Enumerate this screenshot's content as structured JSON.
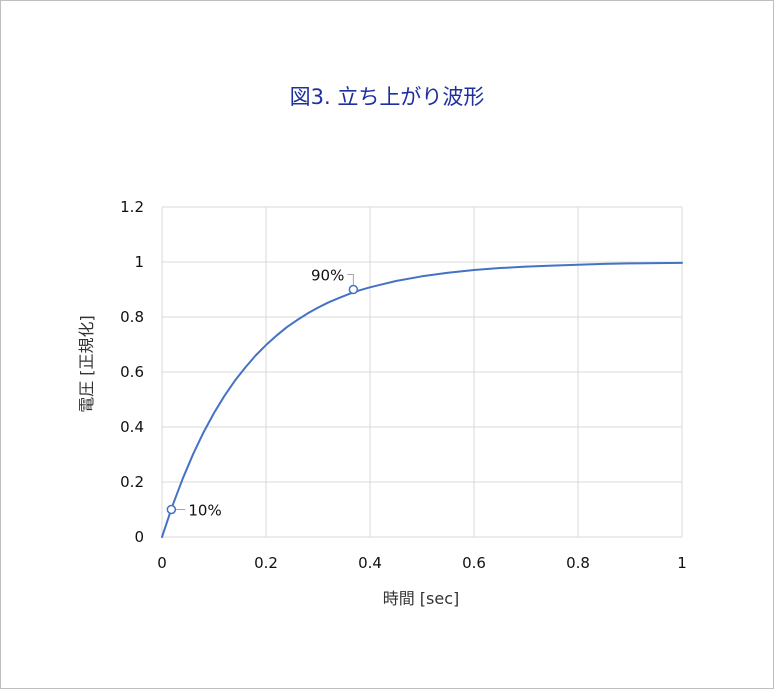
{
  "chart_data": {
    "type": "line",
    "title": "図3. 立ち上がり波形",
    "xlabel": "時間 [sec]",
    "ylabel": "電圧 [正規化]",
    "xlim": [
      0,
      1
    ],
    "ylim": [
      0,
      1.2
    ],
    "x_ticks": [
      "0",
      "0.2",
      "0.4",
      "0.6",
      "0.8",
      "1"
    ],
    "y_ticks": [
      "0",
      "0.2",
      "0.4",
      "0.6",
      "0.8",
      "1",
      "1.2"
    ],
    "grid": true,
    "colors": {
      "line": "#4472c4",
      "grid": "#d9d9d9",
      "title": "#1f2f9e"
    },
    "series": [
      {
        "x": [
          0,
          0.02,
          0.04,
          0.06,
          0.08,
          0.1,
          0.12,
          0.14,
          0.16,
          0.18,
          0.2,
          0.22,
          0.24,
          0.26,
          0.28,
          0.3,
          0.32,
          0.34,
          0.36,
          0.38,
          0.4,
          0.45,
          0.5,
          0.55,
          0.6,
          0.65,
          0.7,
          0.75,
          0.8,
          0.85,
          0.9,
          0.95,
          1.0
        ],
        "values": [
          0,
          0.113,
          0.213,
          0.302,
          0.381,
          0.451,
          0.513,
          0.568,
          0.616,
          0.66,
          0.698,
          0.732,
          0.763,
          0.789,
          0.813,
          0.834,
          0.853,
          0.869,
          0.884,
          0.897,
          0.908,
          0.931,
          0.948,
          0.961,
          0.971,
          0.978,
          0.983,
          0.987,
          0.99,
          0.993,
          0.995,
          0.996,
          0.997
        ]
      }
    ],
    "annotations": [
      {
        "label": "10%",
        "x": 0.018,
        "y": 0.1
      },
      {
        "label": "90%",
        "x": 0.368,
        "y": 0.9
      }
    ]
  }
}
